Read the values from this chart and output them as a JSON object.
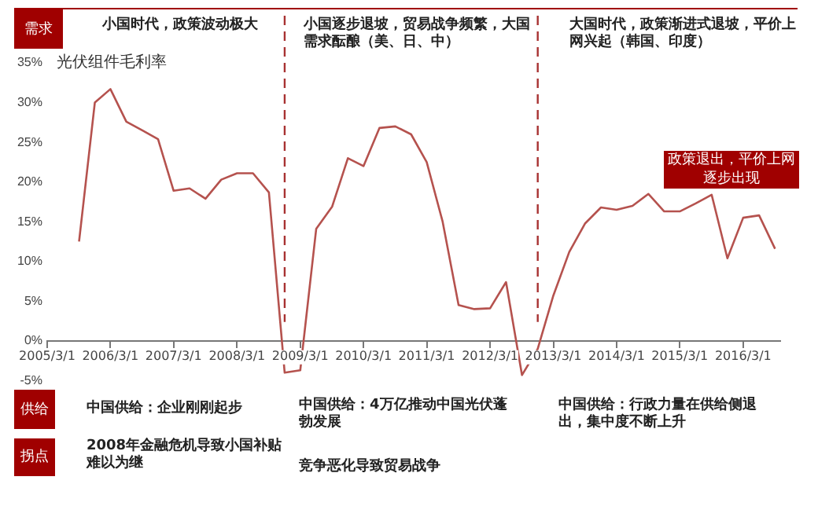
{
  "chart_data": {
    "type": "line",
    "ylabel": "光伏组件毛利率",
    "x": [
      "2005-09",
      "2005-12",
      "2006-03",
      "2006-06",
      "2006-09",
      "2006-12",
      "2007-03",
      "2007-06",
      "2007-09",
      "2007-12",
      "2008-03",
      "2008-06",
      "2008-09",
      "2008-12",
      "2009-03",
      "2009-06",
      "2009-09",
      "2009-12",
      "2010-03",
      "2010-06",
      "2010-09",
      "2010-12",
      "2011-03",
      "2011-06",
      "2011-09",
      "2011-12",
      "2012-03",
      "2012-06",
      "2012-09",
      "2012-12",
      "2013-03",
      "2013-06",
      "2013-09",
      "2013-12",
      "2014-03",
      "2014-06",
      "2014-09",
      "2014-12",
      "2015-03",
      "2015-06",
      "2015-09",
      "2015-12",
      "2016-03",
      "2016-06",
      "2016-09"
    ],
    "series": [
      {
        "color": "#b5524e",
        "values": [
          12.5,
          30,
          31.7,
          27.6,
          26.5,
          25.4,
          18.9,
          19.2,
          17.9,
          20.3,
          21.1,
          21.1,
          18.7,
          -4,
          -3.7,
          14.1,
          16.9,
          23,
          22,
          26.8,
          27,
          26,
          22.5,
          15,
          4.5,
          4,
          4.1,
          7.4,
          -4.3,
          -1,
          5.7,
          11.2,
          14.8,
          16.8,
          16.5,
          17,
          18.5,
          16.3,
          16.3,
          17.3,
          18.4,
          10.4,
          15.5,
          15.8,
          11.6
        ]
      }
    ],
    "xlim": [
      "2005-03",
      "2016-10"
    ],
    "xticks": [
      {
        "value": "2005-03",
        "label": "2005/3/1"
      },
      {
        "value": "2006-03",
        "label": "2006/3/1"
      },
      {
        "value": "2007-03",
        "label": "2007/3/1"
      },
      {
        "value": "2008-03",
        "label": "2008/3/1"
      },
      {
        "value": "2009-03",
        "label": "2009/3/1"
      },
      {
        "value": "2010-03",
        "label": "2010/3/1"
      },
      {
        "value": "2011-03",
        "label": "2011/3/1"
      },
      {
        "value": "2012-03",
        "label": "2012/3/1"
      },
      {
        "value": "2013-03",
        "label": "2013/3/1"
      },
      {
        "value": "2014-03",
        "label": "2014/3/1"
      },
      {
        "value": "2015-03",
        "label": "2015/3/1"
      },
      {
        "value": "2016-03",
        "label": "2016/3/1"
      }
    ],
    "ylim": [
      -5,
      35
    ],
    "yticks": [
      {
        "value": -5,
        "label": "-5%"
      },
      {
        "value": 0,
        "label": "0%"
      },
      {
        "value": 5,
        "label": "5%"
      },
      {
        "value": 10,
        "label": "10%"
      },
      {
        "value": 15,
        "label": "15%"
      },
      {
        "value": 20,
        "label": "20%"
      },
      {
        "value": 25,
        "label": "25%"
      },
      {
        "value": 30,
        "label": "30%"
      },
      {
        "value": 35,
        "label": "35%"
      }
    ],
    "ref_lines": [
      {
        "axis": "x",
        "value": "2008-12",
        "color": "#a83232",
        "line_style": "dashed"
      },
      {
        "axis": "x",
        "value": "2012-12",
        "color": "#a83232",
        "line_style": "dashed"
      }
    ],
    "grid": false,
    "legend": false,
    "marker": "none",
    "line_style": "solid",
    "annotations": [
      "需求",
      "小国时代，政策波动极大",
      "小国逐步退坡，贸易战争频繁，大国需求酝酿（美、日、中）",
      "大国时代，政策渐进式退坡，平价上网兴起（韩国、印度）",
      "政策退出，平价上网逐步出现",
      "供给",
      "中国供给：企业刚刚起步",
      "中国供给：4万亿推动中国光伏蓬勃发展",
      "中国供给：行政力量在供给侧退出，集中度不断上升",
      "拐点",
      "2008年金融危机导致小国补贴难以为继",
      "竞争恶化导致贸易战争"
    ]
  }
}
